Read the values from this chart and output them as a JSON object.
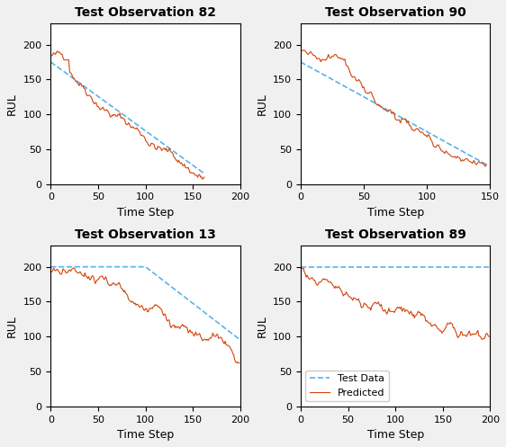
{
  "subplots": [
    {
      "title": "Test Observation 82",
      "xlim": [
        0,
        200
      ],
      "ylim": [
        0,
        230
      ],
      "xticks": [
        0,
        50,
        100,
        150,
        200
      ],
      "yticks": [
        0,
        50,
        100,
        150,
        200
      ],
      "n_steps": 163,
      "test_start": 175,
      "test_end": 15,
      "pred_start": 185,
      "pred_end": 10,
      "pred_bump": 1,
      "show_legend": false
    },
    {
      "title": "Test Observation 90",
      "xlim": [
        0,
        150
      ],
      "ylim": [
        0,
        230
      ],
      "xticks": [
        0,
        50,
        100,
        150
      ],
      "yticks": [
        0,
        50,
        100,
        150,
        200
      ],
      "n_steps": 148,
      "test_start": 175,
      "test_end": 28,
      "pred_start": 190,
      "pred_end": 28,
      "pred_bump": 0,
      "show_legend": false
    },
    {
      "title": "Test Observation 13",
      "xlim": [
        0,
        200
      ],
      "ylim": [
        0,
        230
      ],
      "xticks": [
        0,
        50,
        100,
        150,
        200
      ],
      "yticks": [
        0,
        50,
        100,
        150,
        200
      ],
      "n_steps": 200,
      "test_start": 200,
      "test_end": 95,
      "pred_start": 193,
      "pred_end": 62,
      "pred_bump": 0,
      "show_legend": false
    },
    {
      "title": "Test Observation 89",
      "xlim": [
        0,
        200
      ],
      "ylim": [
        0,
        230
      ],
      "xticks": [
        0,
        50,
        100,
        150,
        200
      ],
      "yticks": [
        0,
        50,
        100,
        150,
        200
      ],
      "n_steps": 200,
      "test_start": 200,
      "test_end": 200,
      "pred_start": 200,
      "pred_end": 100,
      "pred_bump": 0,
      "show_legend": true
    }
  ],
  "test_color": "#56B4E9",
  "pred_color": "#D2440A",
  "bg_color": "#f0f0f0",
  "axes_bg": "#ffffff",
  "title_fontsize": 10,
  "label_fontsize": 9,
  "tick_fontsize": 8
}
